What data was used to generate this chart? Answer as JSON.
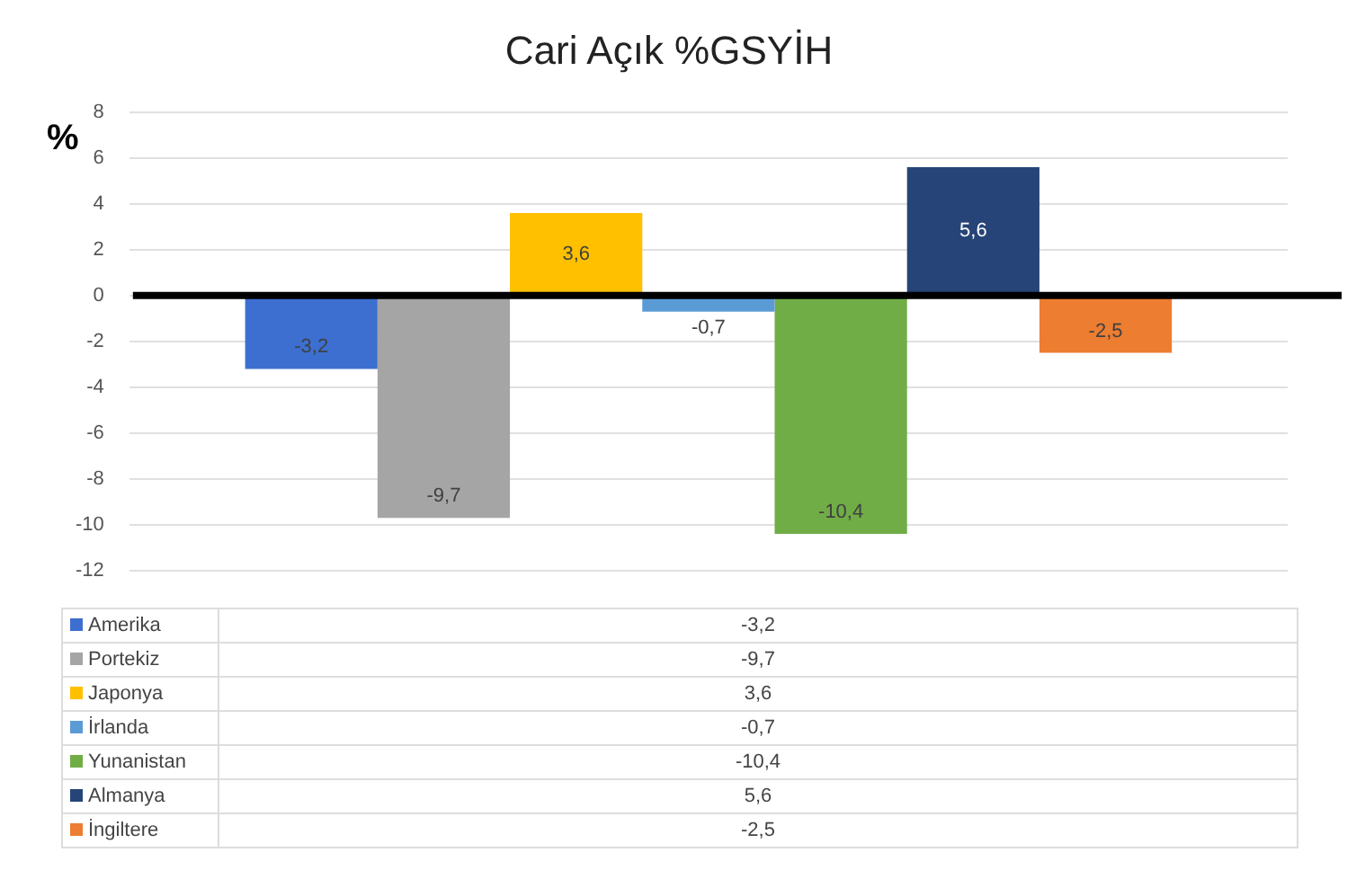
{
  "chart_data": {
    "type": "bar",
    "title": "Cari Açık %GSYİH",
    "ylabel": "%",
    "categories": [
      null
    ],
    "series": [
      {
        "name": "Amerika",
        "color": "#3c6fd0",
        "values": [
          -3.2
        ],
        "value_labels": [
          "-3,2"
        ]
      },
      {
        "name": "Portekiz",
        "color": "#a5a5a5",
        "values": [
          -9.7
        ],
        "value_labels": [
          "-9,7"
        ]
      },
      {
        "name": "Japonya",
        "color": "#ffc000",
        "values": [
          3.6
        ],
        "value_labels": [
          "3,6"
        ]
      },
      {
        "name": "İrlanda",
        "color": "#5b9bd5",
        "values": [
          -0.7
        ],
        "value_labels": [
          "-0,7"
        ]
      },
      {
        "name": "Yunanistan",
        "color": "#70ad47",
        "values": [
          -10.4
        ],
        "value_labels": [
          "-10,4"
        ]
      },
      {
        "name": "Almanya",
        "color": "#264478",
        "values": [
          5.6
        ],
        "value_labels": [
          "5,6"
        ]
      },
      {
        "name": "İngiltere",
        "color": "#ed7d31",
        "values": [
          -2.5
        ],
        "value_labels": [
          "-2,5"
        ]
      }
    ],
    "ylim": [
      -12,
      8
    ],
    "yticks": [
      -12,
      -10,
      -8,
      -6,
      -4,
      -2,
      0,
      2,
      4,
      6,
      8
    ],
    "grid": "y",
    "legend": "bottom"
  }
}
